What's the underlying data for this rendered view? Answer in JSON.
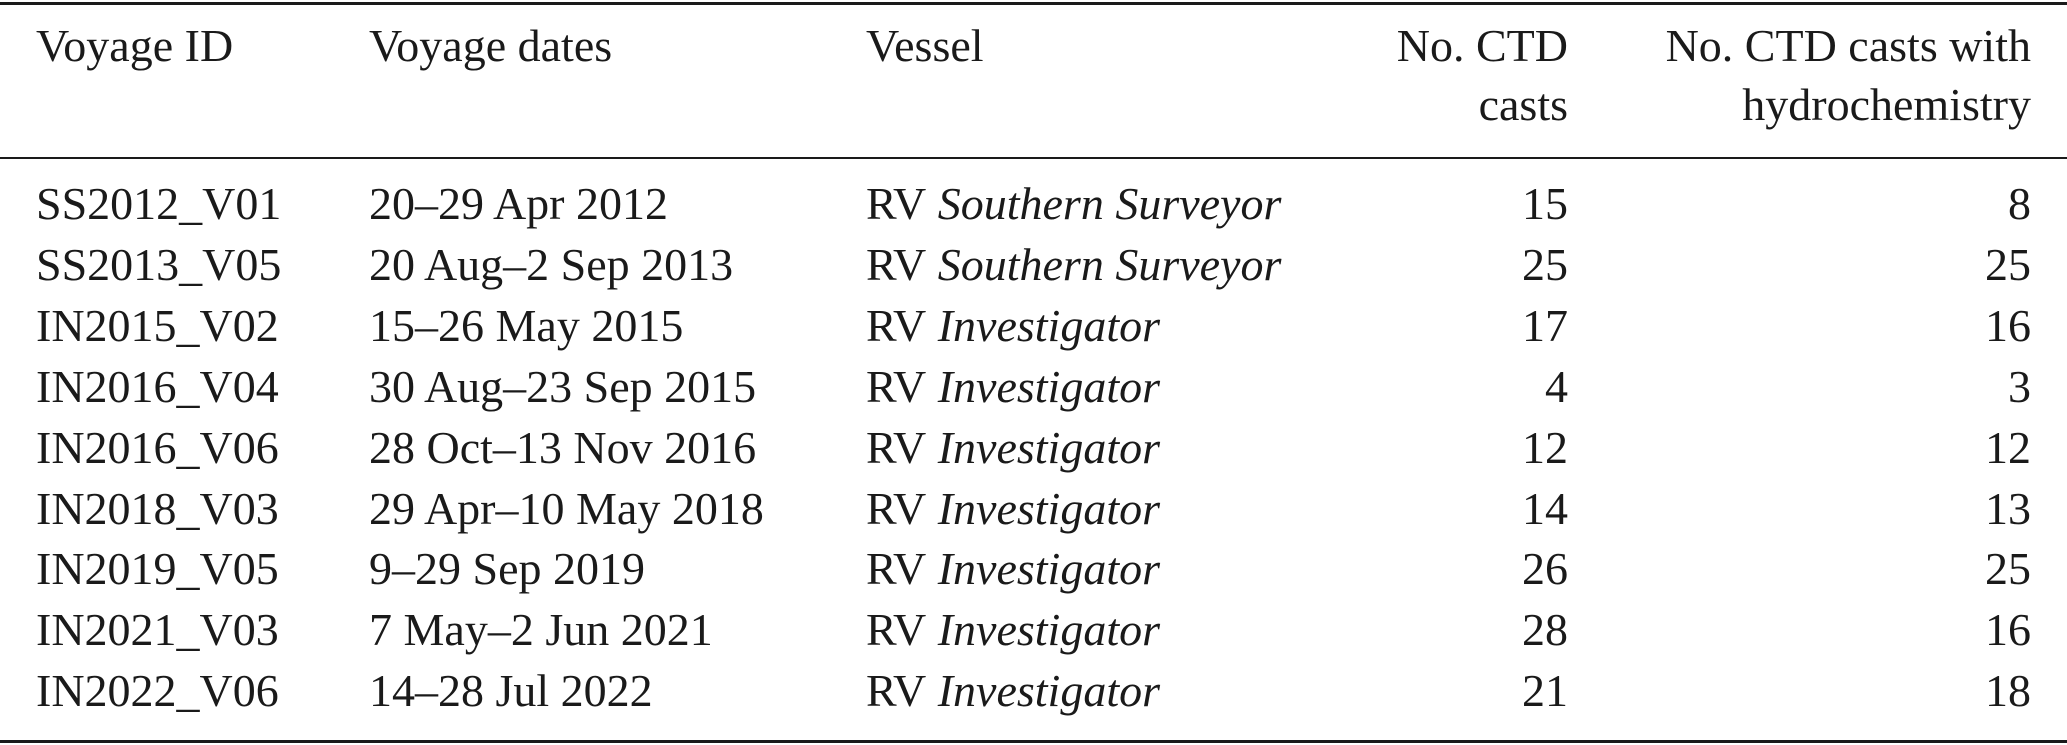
{
  "table": {
    "header": [
      [
        "Voyage ID"
      ],
      [
        "Voyage dates"
      ],
      [
        "Vessel"
      ],
      [
        "No. CTD",
        "casts"
      ],
      [
        "No. CTD casts with",
        "hydrochemistry"
      ]
    ],
    "rows": [
      {
        "id": "SS2012_V01",
        "dates": "20–29 Apr 2012",
        "vessel_prefix": "RV",
        "vessel_name": "Southern Surveyor",
        "ctd": 15,
        "hydro": 8
      },
      {
        "id": "SS2013_V05",
        "dates": "20 Aug–2 Sep 2013",
        "vessel_prefix": "RV",
        "vessel_name": "Southern Surveyor",
        "ctd": 25,
        "hydro": 25
      },
      {
        "id": "IN2015_V02",
        "dates": "15–26 May 2015",
        "vessel_prefix": "RV",
        "vessel_name": "Investigator",
        "ctd": 17,
        "hydro": 16
      },
      {
        "id": "IN2016_V04",
        "dates": "30 Aug–23 Sep 2015",
        "vessel_prefix": "RV",
        "vessel_name": "Investigator",
        "ctd": 4,
        "hydro": 3
      },
      {
        "id": "IN2016_V06",
        "dates": "28 Oct–13 Nov 2016",
        "vessel_prefix": "RV",
        "vessel_name": "Investigator",
        "ctd": 12,
        "hydro": 12
      },
      {
        "id": "IN2018_V03",
        "dates": "29 Apr–10 May 2018",
        "vessel_prefix": "RV",
        "vessel_name": "Investigator",
        "ctd": 14,
        "hydro": 13
      },
      {
        "id": "IN2019_V05",
        "dates": "9–29 Sep 2019",
        "vessel_prefix": "RV",
        "vessel_name": "Investigator",
        "ctd": 26,
        "hydro": 25
      },
      {
        "id": "IN2021_V03",
        "dates": "7 May–2 Jun 2021",
        "vessel_prefix": "RV",
        "vessel_name": "Investigator",
        "ctd": 28,
        "hydro": 16
      },
      {
        "id": "IN2022_V06",
        "dates": "14–28 Jul 2022",
        "vessel_prefix": "RV",
        "vessel_name": "Investigator",
        "ctd": 21,
        "hydro": 18
      }
    ]
  }
}
